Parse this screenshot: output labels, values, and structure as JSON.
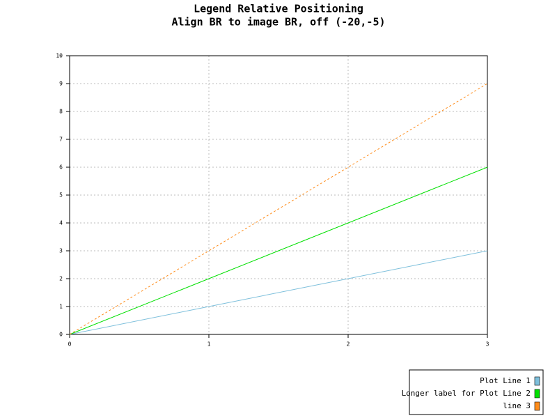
{
  "chart_data": {
    "type": "line",
    "title": "Legend Relative Positioning",
    "subtitle": "Align BR to image BR, off (-20,-5)",
    "x": [
      0,
      1,
      2,
      3
    ],
    "series": [
      {
        "name": "Plot Line 1",
        "color": "#7ec0dc",
        "values": [
          0,
          1,
          2,
          3
        ]
      },
      {
        "name": "Longer label for Plot Line 2",
        "color": "#00e000",
        "values": [
          0,
          2,
          4,
          6
        ]
      },
      {
        "name": "line 3",
        "color": "#ff8c1a",
        "values": [
          0,
          3,
          6,
          9
        ],
        "dashed": true
      }
    ],
    "xlim": [
      0,
      3
    ],
    "xticks": [
      0,
      1,
      2,
      3
    ],
    "ylim": [
      0,
      10
    ],
    "yticks": [
      0,
      1,
      2,
      3,
      4,
      5,
      6,
      7,
      8,
      9,
      10
    ],
    "grid": true,
    "legend": "lower right"
  }
}
